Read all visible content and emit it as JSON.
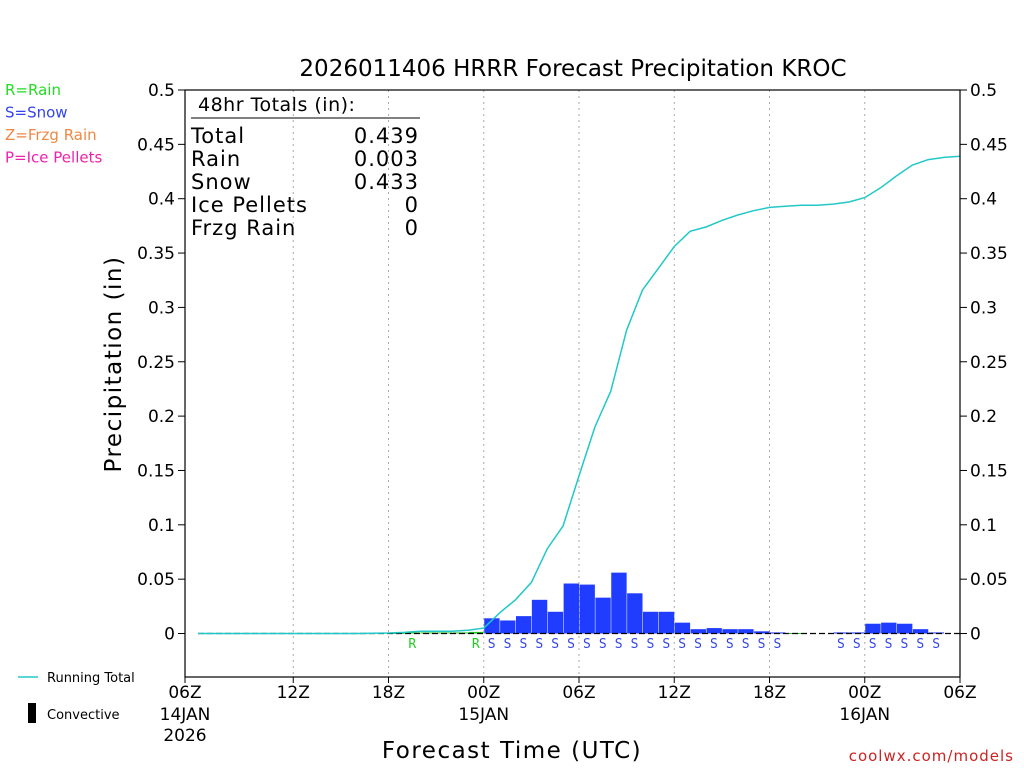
{
  "chart_data": {
    "type": "bar",
    "title": "2026011406 HRRR Forecast Precipitation KROC",
    "ylabel": "Precipitation (in)",
    "xlabel": "Forecast Time (UTC)",
    "ylim": [
      -0.04,
      0.5
    ],
    "xlim_hours": [
      0,
      48
    ],
    "y_ticks": [
      "0",
      "0.05",
      "0.1",
      "0.15",
      "0.2",
      "0.25",
      "0.3",
      "0.35",
      "0.4",
      "0.45",
      "0.5"
    ],
    "y_tick_values": [
      0,
      0.05,
      0.1,
      0.15,
      0.2,
      0.25,
      0.3,
      0.35,
      0.4,
      0.45,
      0.5
    ],
    "x_ticks": [
      {
        "hour": 0,
        "label": "06Z",
        "sub1": "14JAN",
        "sub2": "2026"
      },
      {
        "hour": 6,
        "label": "12Z",
        "sub1": "",
        "sub2": ""
      },
      {
        "hour": 12,
        "label": "18Z",
        "sub1": "",
        "sub2": ""
      },
      {
        "hour": 18,
        "label": "00Z",
        "sub1": "15JAN",
        "sub2": ""
      },
      {
        "hour": 24,
        "label": "06Z",
        "sub1": "",
        "sub2": ""
      },
      {
        "hour": 30,
        "label": "12Z",
        "sub1": "",
        "sub2": ""
      },
      {
        "hour": 36,
        "label": "18Z",
        "sub1": "",
        "sub2": ""
      },
      {
        "hour": 42,
        "label": "00Z",
        "sub1": "16JAN",
        "sub2": ""
      },
      {
        "hour": 48,
        "label": "06Z",
        "sub1": "",
        "sub2": ""
      }
    ],
    "hourly_precip_hours": [
      1,
      2,
      3,
      4,
      5,
      6,
      7,
      8,
      9,
      10,
      11,
      12,
      13,
      14,
      15,
      16,
      17,
      18,
      19,
      20,
      21,
      22,
      23,
      24,
      25,
      26,
      27,
      28,
      29,
      30,
      31,
      32,
      33,
      34,
      35,
      36,
      37,
      38,
      39,
      40,
      41,
      42,
      43,
      44,
      45,
      46,
      47,
      48
    ],
    "hourly_precip": [
      0,
      0,
      0,
      0,
      0,
      0,
      0,
      0,
      0,
      0,
      0,
      0,
      0.0005,
      0.001,
      0.001,
      0.001,
      0.001,
      0.0015,
      0.014,
      0.012,
      0.016,
      0.031,
      0.02,
      0.046,
      0.045,
      0.033,
      0.056,
      0.037,
      0.02,
      0.02,
      0.01,
      0.004,
      0.005,
      0.004,
      0.004,
      0.002,
      0.001,
      0.0005,
      0,
      0,
      0.001,
      0.001,
      0.009,
      0.01,
      0.009,
      0.004,
      0.001,
      0
    ],
    "precip_type": [
      "",
      "",
      "",
      "",
      "",
      "",
      "",
      "",
      "",
      "",
      "",
      "",
      "",
      "R",
      "",
      "",
      "",
      "R",
      "S",
      "S",
      "S",
      "S",
      "S",
      "S",
      "S",
      "S",
      "S",
      "S",
      "S",
      "S",
      "S",
      "S",
      "S",
      "S",
      "S",
      "S",
      "S",
      "",
      "",
      "",
      "S",
      "S",
      "S",
      "S",
      "S",
      "S",
      "S",
      ""
    ],
    "running_total": {
      "name": "Running Total",
      "hours": [
        0,
        2,
        4,
        6,
        8,
        10,
        11,
        12,
        13,
        14,
        15,
        16,
        17,
        18,
        19,
        20,
        21,
        22,
        23,
        24,
        25,
        26,
        27,
        28,
        29,
        30,
        31,
        32,
        33,
        34,
        35,
        36,
        37,
        38,
        39,
        40,
        41,
        42,
        43,
        44,
        45,
        46,
        47,
        48
      ],
      "values": [
        0,
        0,
        0,
        0,
        0,
        0,
        0.0003,
        0.0005,
        0.001,
        0.002,
        0.002,
        0.002,
        0.003,
        0.005,
        0.019,
        0.031,
        0.047,
        0.078,
        0.099,
        0.145,
        0.19,
        0.223,
        0.279,
        0.316,
        0.336,
        0.356,
        0.37,
        0.374,
        0.38,
        0.385,
        0.389,
        0.392,
        0.393,
        0.394,
        0.394,
        0.395,
        0.397,
        0.401,
        0.41,
        0.421,
        0.431,
        0.436,
        0.438,
        0.439
      ]
    },
    "legend_types": [
      {
        "label": "R=Rain",
        "color": "#22dd22"
      },
      {
        "label": "S=Snow",
        "color": "#3344ee"
      },
      {
        "label": "Z=Frzg Rain",
        "color": "#ee8844"
      },
      {
        "label": "P=Ice Pellets",
        "color": "#ee22aa"
      }
    ],
    "legend_lines": {
      "running_total": "Running Total",
      "convective": "Convective"
    },
    "totals": {
      "header": "48hr Totals (in):",
      "rows": [
        {
          "label": "Total",
          "value": "0.439"
        },
        {
          "label": "Rain",
          "value": "0.003"
        },
        {
          "label": "Snow",
          "value": "0.433"
        },
        {
          "label": "Ice Pellets",
          "value": "0"
        },
        {
          "label": "Frzg Rain",
          "value": "0"
        }
      ]
    },
    "colors": {
      "snow_bar": "#1f3cff",
      "rain_bar": "#22cc22",
      "running_total": "#22c8c8",
      "grid": "#aaaaaa",
      "rain_letter": "#22cc22",
      "snow_letter": "#3344ee"
    },
    "credit": "coolwx.com/models"
  }
}
